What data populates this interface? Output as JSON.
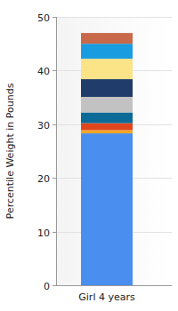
{
  "chart_data": {
    "type": "bar",
    "stacked": true,
    "y_label": "Percentile Weight in Pounds",
    "categories": [
      "Girl 4 years"
    ],
    "series": [
      {
        "color": "#4a8ef0",
        "values": [
          28.3
        ]
      },
      {
        "color": "#f5a623",
        "values": [
          0.6
        ]
      },
      {
        "color": "#e0461c",
        "values": [
          1.3
        ]
      },
      {
        "color": "#0b6a96",
        "values": [
          2.0
        ]
      },
      {
        "color": "#c2c2c2",
        "values": [
          2.9
        ]
      },
      {
        "color": "#1f3c6b",
        "values": [
          3.3
        ]
      },
      {
        "color": "#fbe388",
        "values": [
          3.8
        ]
      },
      {
        "color": "#1a9de0",
        "values": [
          2.8
        ]
      },
      {
        "color": "#c8694a",
        "values": [
          2.0
        ]
      }
    ],
    "ylim": [
      0,
      50
    ],
    "yticks": [
      0,
      10,
      20,
      30,
      40,
      50
    ],
    "grid": true
  }
}
